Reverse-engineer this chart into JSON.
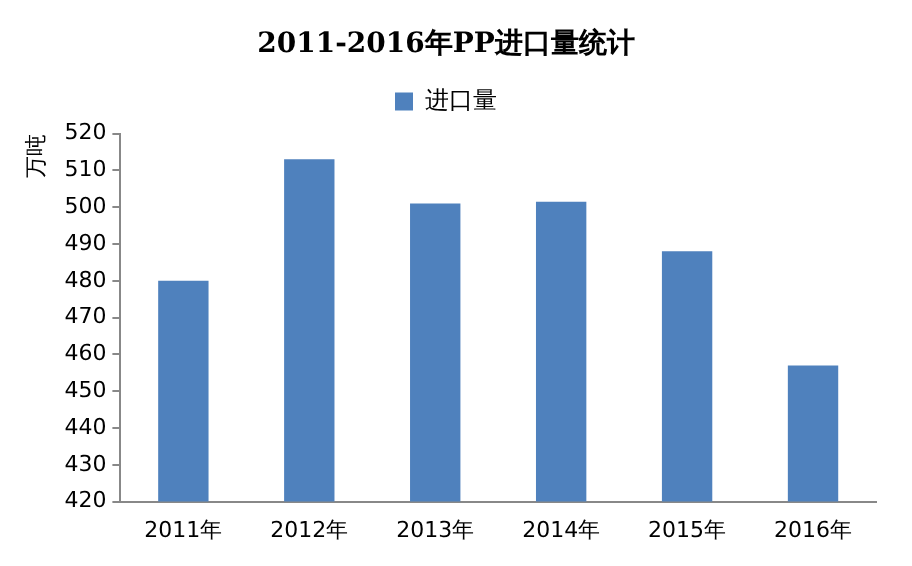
{
  "chart_data": {
    "type": "bar",
    "title": "2011-2016年PP进口量统计",
    "ylabel": "万吨",
    "categories": [
      "2011年",
      "2012年",
      "2013年",
      "2014年",
      "2015年",
      "2016年"
    ],
    "series": [
      {
        "name": "进口量",
        "color": "#4f81bd",
        "values": [
          480,
          513,
          501,
          501.5,
          488,
          457
        ]
      }
    ],
    "ylim": [
      420,
      520
    ],
    "yticks": [
      420,
      430,
      440,
      450,
      460,
      470,
      480,
      490,
      500,
      510,
      520
    ],
    "grid": false,
    "legend": "top"
  }
}
